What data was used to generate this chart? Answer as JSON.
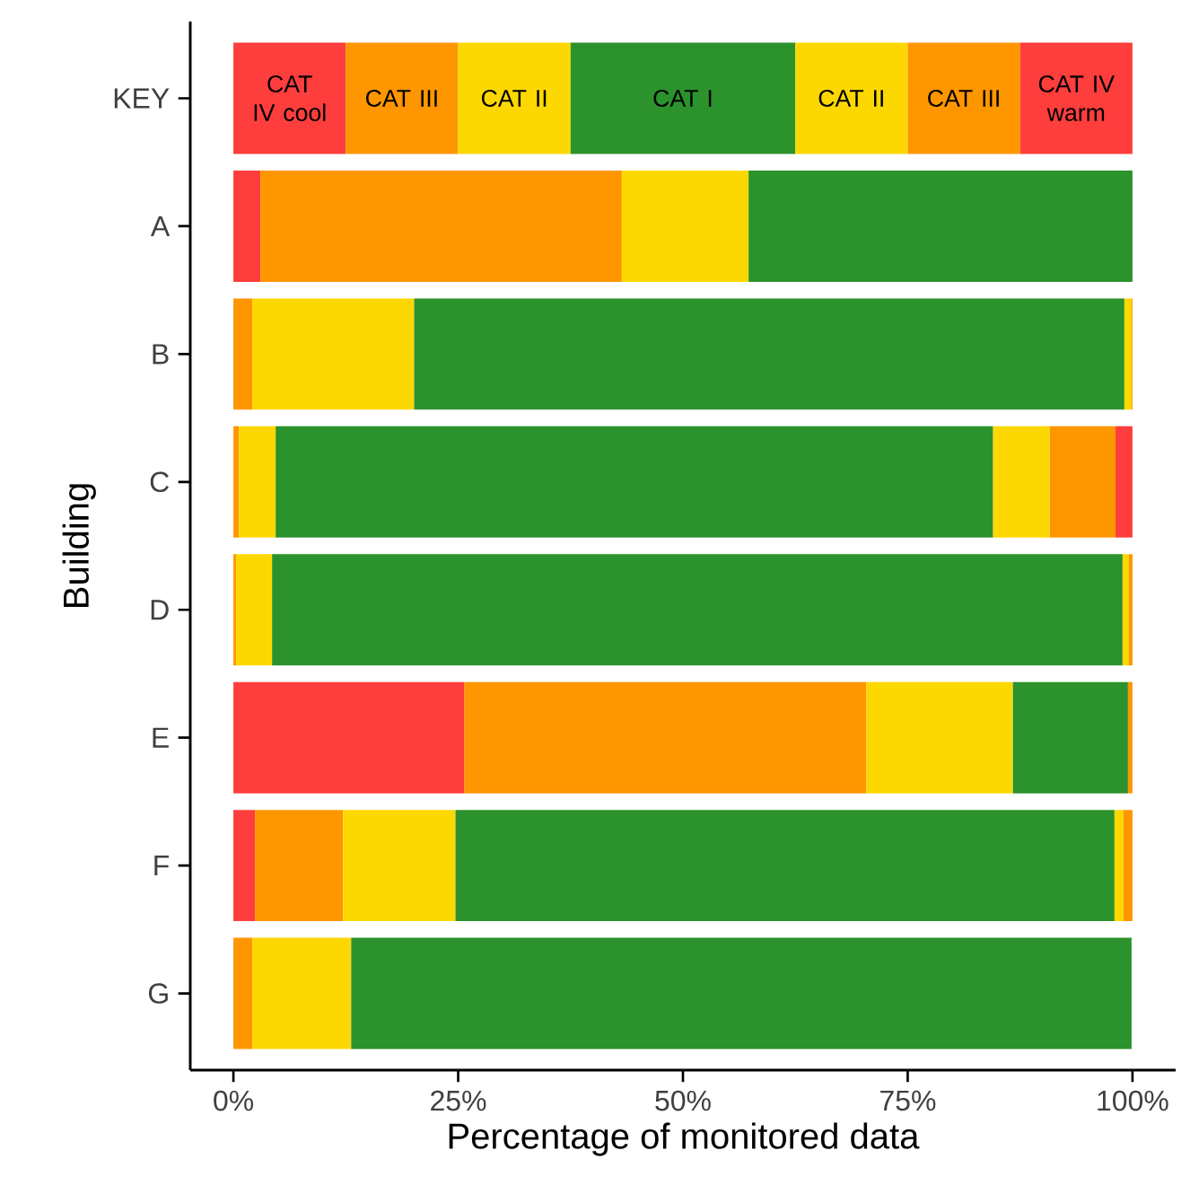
{
  "chart_data": {
    "type": "bar",
    "orientation": "horizontal",
    "stacked": true,
    "xlabel": "Percentage of monitored data",
    "ylabel": "Building",
    "categories": [
      "KEY",
      "A",
      "B",
      "C",
      "D",
      "E",
      "F",
      "G"
    ],
    "xlim": [
      -4.8,
      104.8
    ],
    "xticks": [
      {
        "value": 0,
        "label": "0%"
      },
      {
        "value": 25,
        "label": "25%"
      },
      {
        "value": 50,
        "label": "50%"
      },
      {
        "value": 75,
        "label": "75%"
      },
      {
        "value": 100,
        "label": "100%"
      }
    ],
    "grid": false,
    "series": [
      {
        "name": "CAT IV cool",
        "color": "#fe3d3d",
        "values": [
          12.5,
          3.0,
          null,
          null,
          null,
          25.7,
          2.4,
          null
        ]
      },
      {
        "name": "CAT III",
        "color": "#fe9600",
        "values": [
          12.5,
          40.2,
          2.1,
          0.6,
          0.3,
          44.7,
          9.8,
          2.1
        ]
      },
      {
        "name": "CAT II",
        "color": "#fdd800",
        "values": [
          12.5,
          14.1,
          18.0,
          4.1,
          4.0,
          16.3,
          12.5,
          11.0
        ]
      },
      {
        "name": "CAT I",
        "color": "#2c922c",
        "values": [
          25,
          42.7,
          79.0,
          79.8,
          94.6,
          12.8,
          73.3,
          86.8
        ]
      },
      {
        "name": "CAT II",
        "color": "#fdd800",
        "values": [
          12.5,
          null,
          0.8,
          6.3,
          0.7,
          null,
          1.0,
          null
        ]
      },
      {
        "name": "CAT III",
        "color": "#fe9600",
        "values": [
          12.5,
          null,
          0.1,
          7.3,
          0.4,
          0.5,
          1.0,
          null
        ]
      },
      {
        "name": "CAT IV warm",
        "color": "#fe3d3d",
        "values": [
          12.5,
          null,
          null,
          1.9,
          null,
          null,
          null,
          null
        ]
      }
    ]
  }
}
